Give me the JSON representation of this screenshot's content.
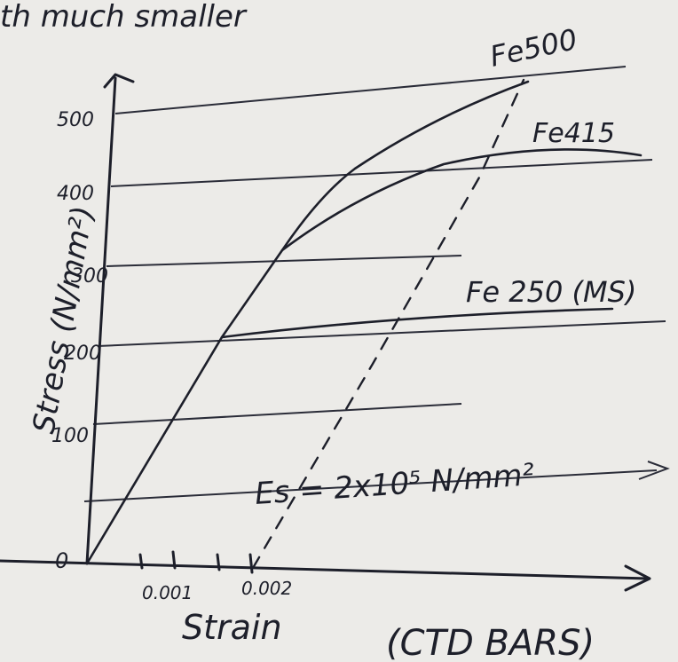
{
  "header": {
    "text": "th much smaller"
  },
  "axes": {
    "y_label": "Stress (N/mm²)",
    "x_label": "Strain",
    "y_ticks": [
      "500",
      "400",
      "300",
      "200",
      "100",
      "0"
    ],
    "x_ticks": [
      "0.001",
      "0.002"
    ]
  },
  "curves": {
    "fe500": "Fe500",
    "fe415": "Fe415",
    "fe250": "Fe 250 (MS)"
  },
  "annotation": "Es = 2x10⁵ N/mm²",
  "footer": "(CTD BARS)"
}
